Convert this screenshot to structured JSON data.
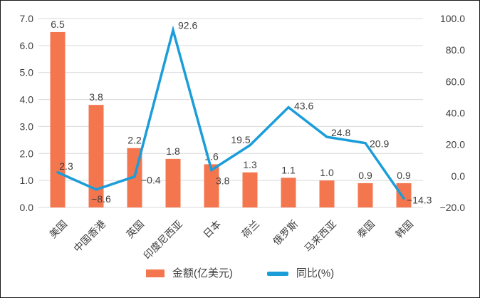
{
  "chart_data": {
    "type": "combo",
    "title": "",
    "categories": [
      "美国",
      "中国香港",
      "英国",
      "印度尼西亚",
      "日本",
      "荷兰",
      "俄罗斯",
      "马来西亚",
      "泰国",
      "韩国"
    ],
    "series": [
      {
        "name": "金额(亿美元)",
        "type": "bar",
        "axis": "left",
        "color": "#F4764E",
        "values": [
          6.5,
          3.8,
          2.2,
          1.8,
          1.6,
          1.3,
          1.1,
          1.0,
          0.9,
          0.9
        ]
      },
      {
        "name": "同比(%)",
        "type": "line",
        "axis": "right",
        "color": "#1B9DD9",
        "values": [
          2.3,
          -8.6,
          -0.4,
          92.6,
          3.8,
          19.5,
          43.6,
          24.8,
          20.9,
          -14.3
        ]
      }
    ],
    "left_axis": {
      "min": 0,
      "max": 7,
      "step": 1,
      "tick_labels": [
        "7.0",
        "6.0",
        "5.0",
        "4.0",
        "3.0",
        "2.0",
        "1.0",
        "0.0"
      ]
    },
    "right_axis": {
      "min": -20,
      "max": 100,
      "step": 20,
      "tick_labels": [
        "100.0",
        "80.0",
        "60.0",
        "40.0",
        "20.0",
        "0.0",
        "-20.0"
      ]
    },
    "grid": true,
    "data_labels": true,
    "legend_position": "bottom",
    "legend": [
      {
        "label": "金额(亿美元)",
        "color": "#F4764E"
      },
      {
        "label": "同比(%)",
        "color": "#1B9DD9"
      }
    ],
    "colors": {
      "gridline": "#D9D9D9",
      "text": "#3F3F3F",
      "frame_border": "#1a1a1a"
    }
  }
}
